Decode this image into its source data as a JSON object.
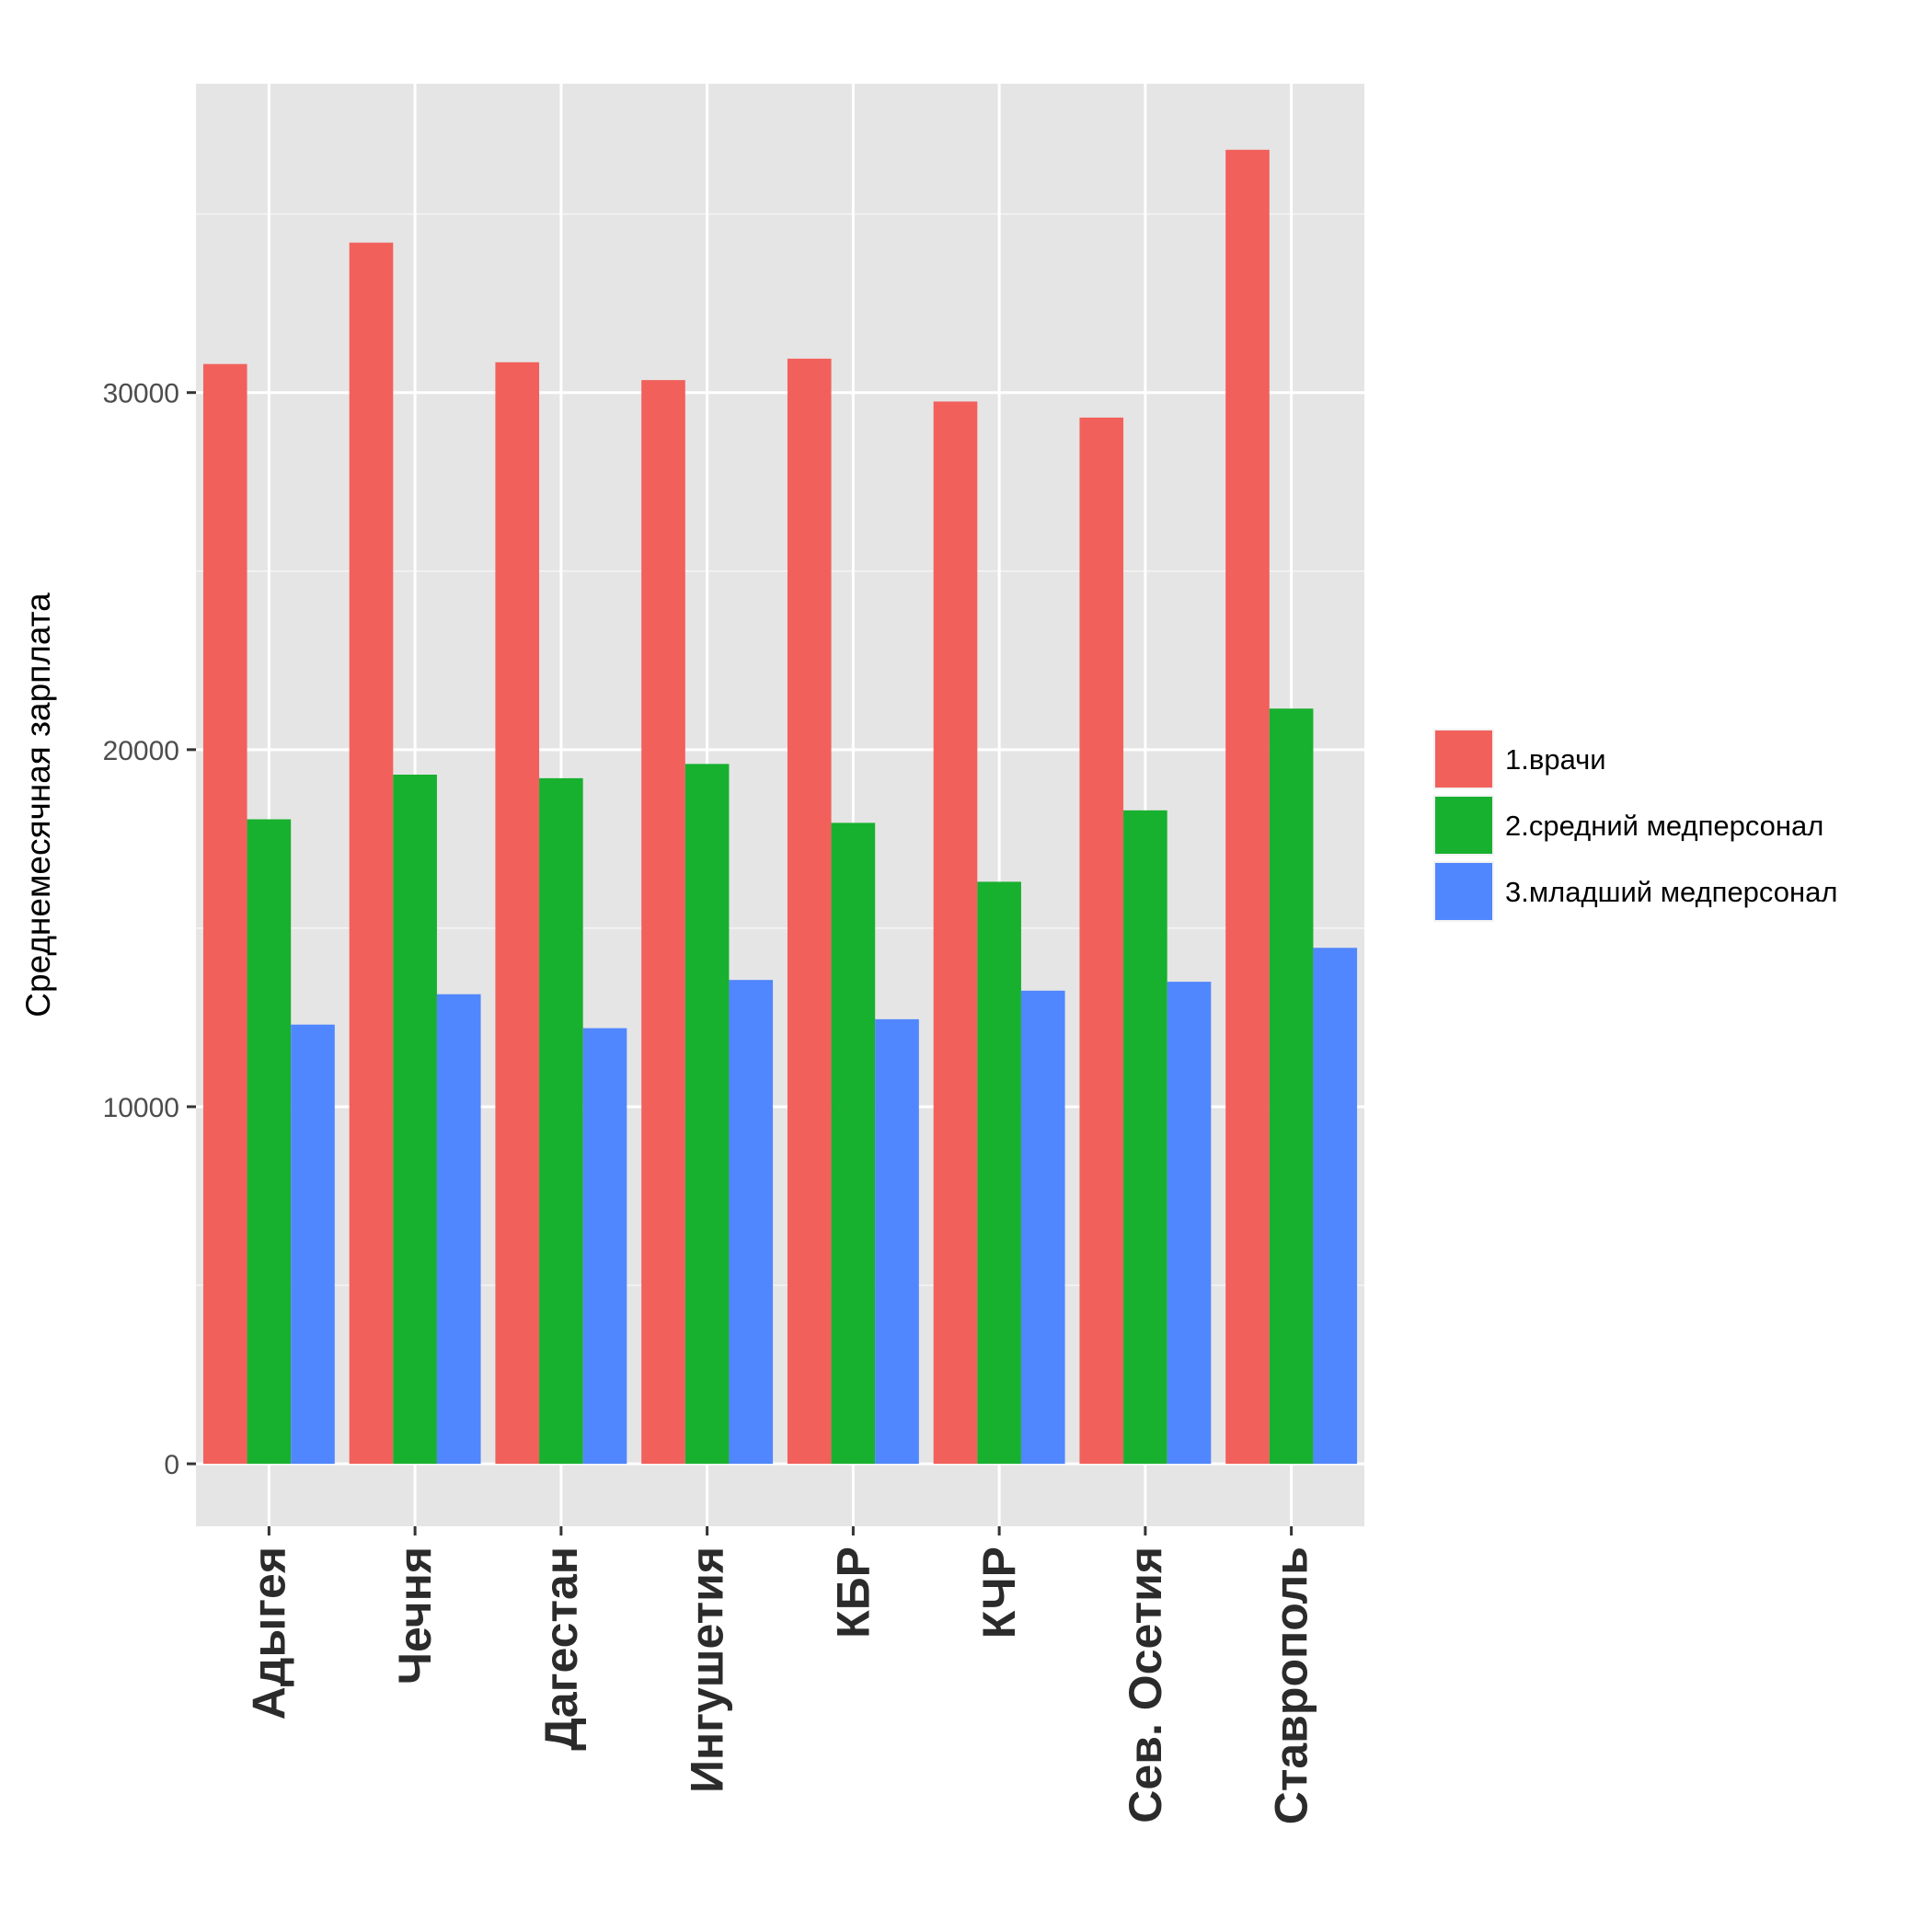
{
  "chart_data": {
    "type": "bar",
    "categories": [
      "Адыгея",
      "Чечня",
      "Дагестан",
      "Ингушетия",
      "КБР",
      "КЧР",
      "Сев. Осетия",
      "Ставрополь"
    ],
    "series": [
      {
        "name": "1.врачи",
        "color": "#F2605C",
        "values": [
          30800,
          34200,
          30850,
          30350,
          30950,
          29750,
          29300,
          36800
        ]
      },
      {
        "name": "2.средний медперсонал",
        "color": "#18B02F",
        "values": [
          18050,
          19300,
          19200,
          19600,
          17950,
          16300,
          18300,
          21150
        ]
      },
      {
        "name": "3.младший медперсонал",
        "color": "#5086FE",
        "values": [
          12300,
          13150,
          12200,
          13550,
          12450,
          13250,
          13500,
          14450
        ]
      }
    ],
    "title": "",
    "xlabel": "",
    "ylabel": "Среднемесячная зарплата",
    "ylim": [
      -1750,
      38650
    ],
    "yticks": [
      0,
      10000,
      20000,
      30000
    ],
    "grid": true,
    "panel_background": "#E5E5E5",
    "legend_position": "right"
  }
}
